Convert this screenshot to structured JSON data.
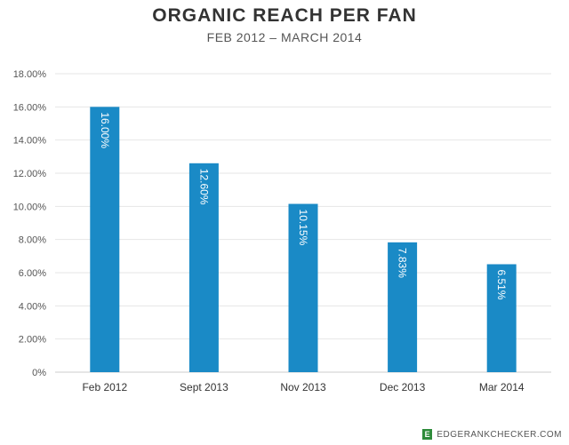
{
  "chart_data": {
    "type": "bar",
    "title": "ORGANIC REACH PER FAN",
    "subtitle": "FEB 2012 – MARCH 2014",
    "categories": [
      "Feb 2012",
      "Sept 2013",
      "Nov 2013",
      "Dec 2013",
      "Mar 2014"
    ],
    "values": [
      16.0,
      12.6,
      10.15,
      7.83,
      6.51
    ],
    "data_labels": [
      "16.00%",
      "12.60%",
      "10.15%",
      "7.83%",
      "6.51%"
    ],
    "ylim": [
      0,
      18
    ],
    "yticks": [
      0,
      2,
      4,
      6,
      8,
      10,
      12,
      14,
      16,
      18
    ],
    "ytick_labels": [
      "0%",
      "2.00%",
      "4.00%",
      "6.00%",
      "8.00%",
      "10.00%",
      "12.00%",
      "14.00%",
      "16.00%",
      "18.00%"
    ],
    "grid": true,
    "bar_color": "#1a8ac6",
    "grid_color": "#e6e6e6"
  },
  "brand": {
    "logo_letter": "E",
    "text": "EDGERANKCHECKER.COM",
    "logo_color": "#2e8b3a"
  }
}
